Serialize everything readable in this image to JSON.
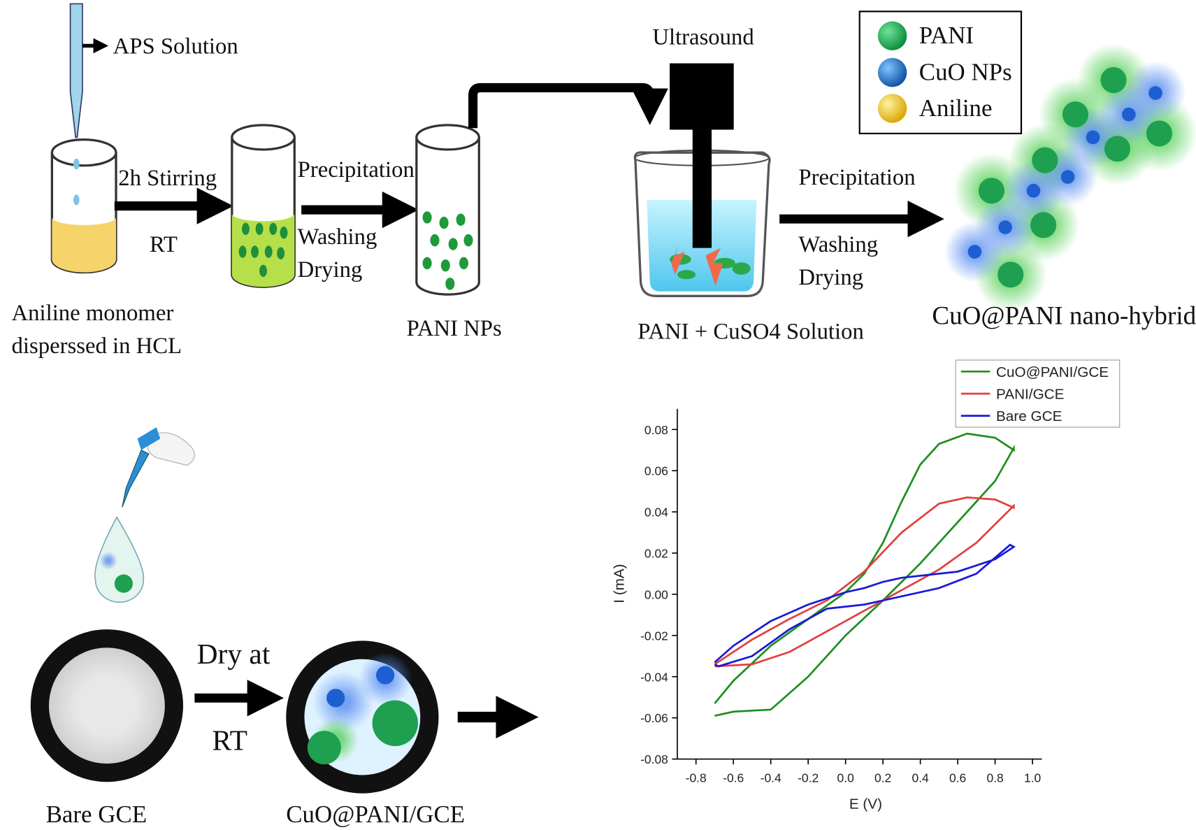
{
  "scheme": {
    "aps_label": "APS Solution",
    "start_label": [
      "Aniline monomer",
      "disperssed in HCL"
    ],
    "step1": {
      "top": "2h Stirring",
      "bottom": "RT"
    },
    "step2": {
      "top": "Precipitation",
      "bottom": [
        "Washing",
        "Drying"
      ]
    },
    "pani_label": "PANI NPs",
    "ultrasound_label": "Ultrasound",
    "sonication_label": "PANI + CuSO4 Solution",
    "step3": {
      "top": "Precipitation",
      "bottom": [
        "Washing",
        "Drying"
      ]
    },
    "product_label": "CuO@PANI nano-hybrid"
  },
  "legend": [
    "PANI",
    "CuO NPs",
    "Aniline"
  ],
  "electrode": {
    "bare_label": "Bare GCE",
    "step": [
      "Dry at",
      "RT"
    ],
    "modified_label": "CuO@PANI/GCE"
  },
  "chart_data": {
    "type": "line",
    "x_label": "E (V)",
    "y_label": "I (mA)",
    "xlim": [
      -0.9,
      1.05
    ],
    "ylim": [
      -0.08,
      0.09
    ],
    "xticks": [
      -0.8,
      -0.6,
      -0.4,
      -0.2,
      {
        "value": 0,
        "label": "0.0"
      },
      0.2,
      0.4,
      0.6,
      0.8,
      {
        "value": 1,
        "label": "1.0"
      }
    ],
    "yticks": [
      -0.08,
      -0.06,
      -0.04,
      -0.02,
      {
        "value": 0,
        "label": "0.00"
      },
      0.02,
      0.04,
      0.06,
      0.08
    ],
    "series": [
      {
        "name": "CuO@PANI/GCE",
        "color": "#1e8f1e",
        "x": [
          -0.7,
          -0.6,
          -0.4,
          -0.2,
          0,
          0.2,
          0.4,
          0.6,
          0.8,
          0.9,
          0.9,
          0.8,
          0.65,
          0.5,
          0.4,
          0.3,
          0.2,
          0.1,
          0,
          -0.2,
          -0.4,
          -0.6,
          -0.7
        ],
        "values": [
          -0.059,
          -0.057,
          -0.056,
          -0.04,
          -0.02,
          -0.003,
          0.015,
          0.035,
          0.055,
          0.071,
          0.07,
          0.076,
          0.078,
          0.073,
          0.063,
          0.045,
          0.025,
          0.01,
          0.001,
          -0.012,
          -0.025,
          -0.042,
          -0.053
        ]
      },
      {
        "name": "PANI/GCE",
        "color": "#e04040",
        "x": [
          -0.7,
          -0.5,
          -0.3,
          -0.1,
          0.1,
          0.3,
          0.5,
          0.7,
          0.9,
          0.9,
          0.8,
          0.65,
          0.5,
          0.3,
          0.1,
          -0.1,
          -0.3,
          -0.5,
          -0.7
        ],
        "values": [
          -0.035,
          -0.034,
          -0.028,
          -0.018,
          -0.008,
          0.002,
          0.012,
          0.025,
          0.043,
          0.042,
          0.046,
          0.047,
          0.044,
          0.03,
          0.011,
          -0.003,
          -0.012,
          -0.022,
          -0.034
        ]
      },
      {
        "name": "Bare GCE",
        "color": "#1a1ad6",
        "x": [
          -0.7,
          -0.68,
          -0.5,
          -0.3,
          -0.1,
          0.1,
          0.3,
          0.5,
          0.7,
          0.88,
          0.9,
          0.8,
          0.6,
          0.4,
          0.3,
          0.2,
          0.1,
          0,
          -0.2,
          -0.4,
          -0.6,
          -0.7
        ],
        "values": [
          -0.034,
          -0.035,
          -0.03,
          -0.017,
          -0.007,
          -0.005,
          -0.001,
          0.003,
          0.01,
          0.024,
          0.023,
          0.017,
          0.011,
          0.009,
          0.008,
          0.006,
          0.003,
          0.001,
          -0.005,
          -0.013,
          -0.025,
          -0.033
        ]
      }
    ]
  }
}
